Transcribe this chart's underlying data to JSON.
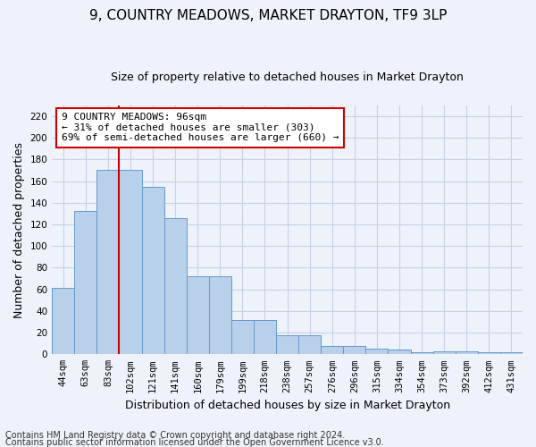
{
  "title": "9, COUNTRY MEADOWS, MARKET DRAYTON, TF9 3LP",
  "subtitle": "Size of property relative to detached houses in Market Drayton",
  "xlabel": "Distribution of detached houses by size in Market Drayton",
  "ylabel": "Number of detached properties",
  "categories": [
    "44sqm",
    "63sqm",
    "83sqm",
    "102sqm",
    "121sqm",
    "141sqm",
    "160sqm",
    "179sqm",
    "199sqm",
    "218sqm",
    "238sqm",
    "257sqm",
    "276sqm",
    "296sqm",
    "315sqm",
    "334sqm",
    "354sqm",
    "373sqm",
    "392sqm",
    "412sqm",
    "431sqm"
  ],
  "values": [
    61,
    132,
    170,
    170,
    155,
    126,
    72,
    72,
    32,
    32,
    18,
    18,
    8,
    8,
    5,
    4,
    2,
    3,
    3,
    2,
    2
  ],
  "bar_color": "#b8d0ea",
  "bar_edge_color": "#6699cc",
  "vline_color": "#cc0000",
  "vline_x": 2.5,
  "annotation_text": "9 COUNTRY MEADOWS: 96sqm\n← 31% of detached houses are smaller (303)\n69% of semi-detached houses are larger (660) →",
  "annotation_box_color": "#ffffff",
  "annotation_box_edge": "#cc0000",
  "ylim": [
    0,
    230
  ],
  "yticks": [
    0,
    20,
    40,
    60,
    80,
    100,
    120,
    140,
    160,
    180,
    200,
    220
  ],
  "footer1": "Contains HM Land Registry data © Crown copyright and database right 2024.",
  "footer2": "Contains public sector information licensed under the Open Government Licence v3.0.",
  "background_color": "#eef2fb",
  "grid_color": "#c8cfe8",
  "title_fontsize": 11,
  "subtitle_fontsize": 9,
  "axis_label_fontsize": 9,
  "tick_fontsize": 7.5,
  "footer_fontsize": 7,
  "annotation_fontsize": 8
}
